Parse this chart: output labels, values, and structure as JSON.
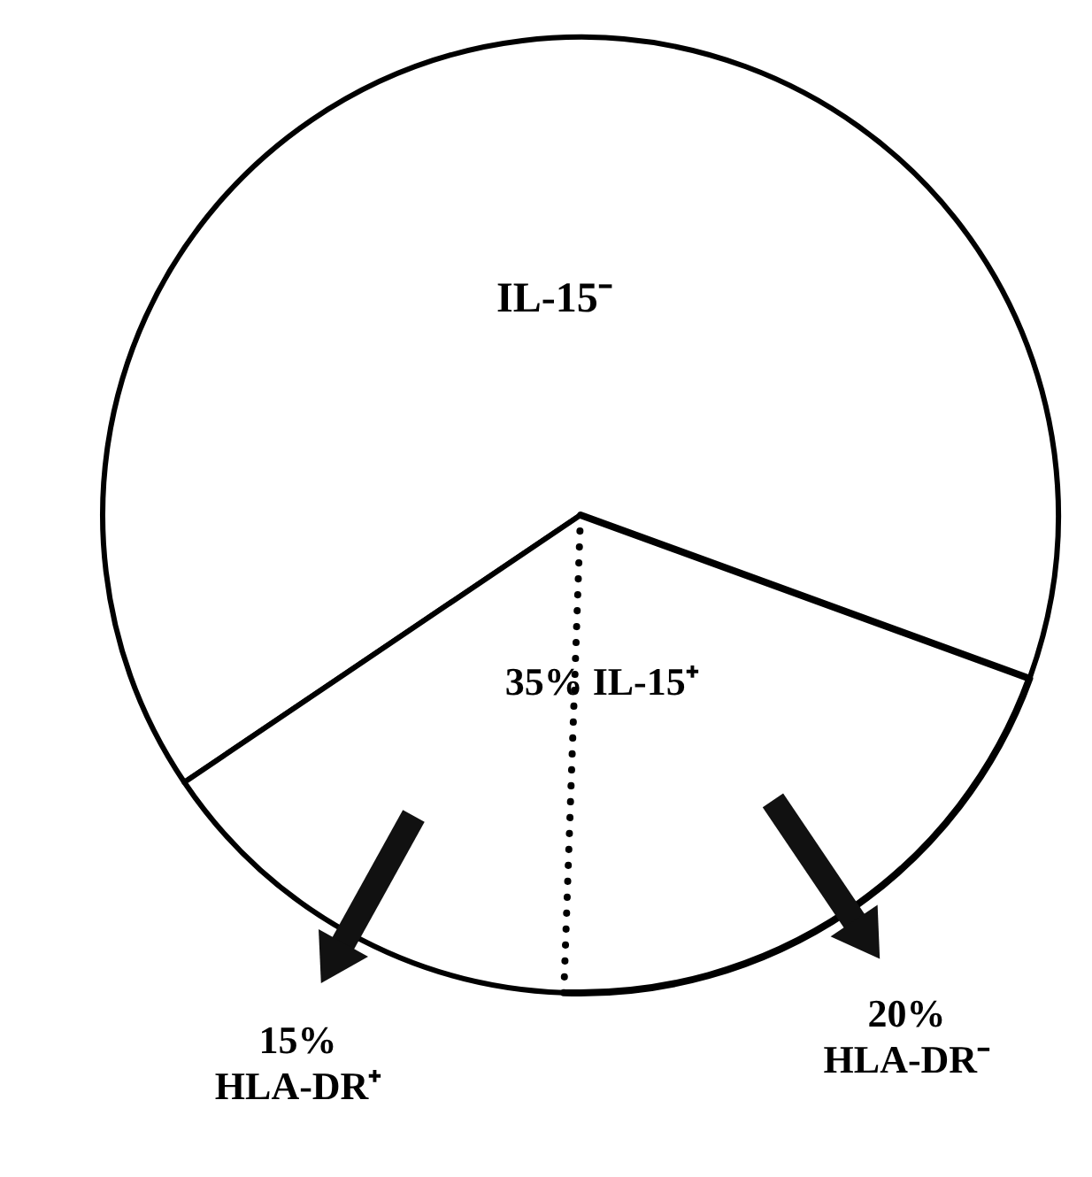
{
  "chart_data": {
    "type": "pie",
    "categories": [
      "IL-15⁻",
      "HLA-DR⁺",
      "HLA-DR⁻"
    ],
    "values": [
      65,
      15,
      20
    ],
    "value_labels": [
      null,
      "15%",
      "20%"
    ],
    "colors": [
      "#ffffff",
      "#ffffff",
      "#ffffff"
    ],
    "annotations": [
      "35% IL-15⁺"
    ]
  }
}
